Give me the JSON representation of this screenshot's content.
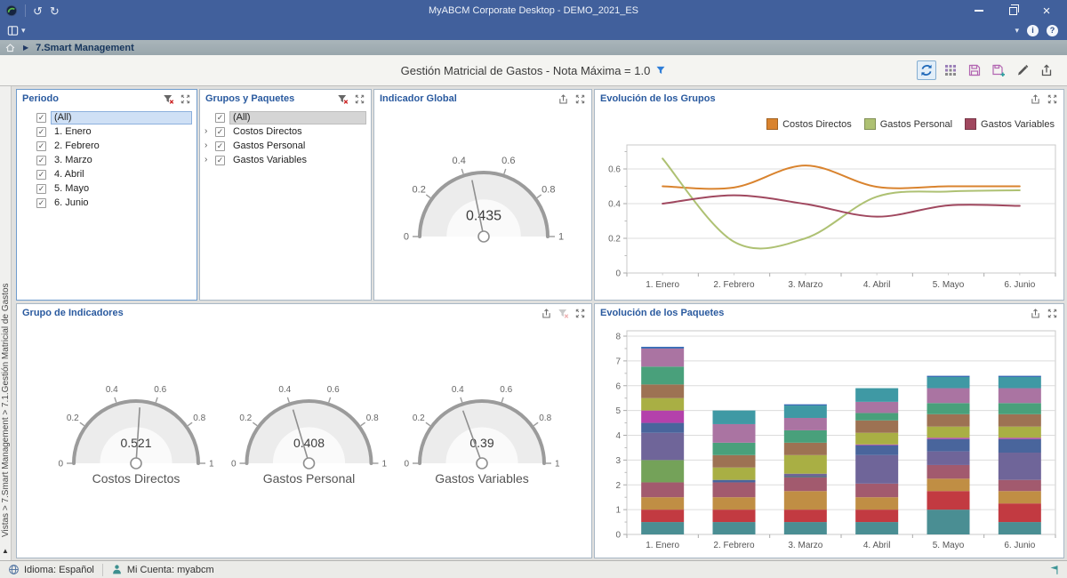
{
  "titlebar": {
    "title": "MyABCM Corporate Desktop - DEMO_2021_ES"
  },
  "icons": {
    "undo": "↺",
    "redo": "↻",
    "chevron_down": "▾",
    "info": "i",
    "help": "?",
    "close": "×",
    "breadcrumb_arrow": "▶",
    "sidebar_collapse": "▲"
  },
  "breadcrumb": {
    "label": "7.Smart Management"
  },
  "view_header": {
    "title": "Gestión Matricial de Gastos - Nota Máxima = 1.0"
  },
  "side_nav": {
    "path": "Vistas > 7.Smart Management > 7.1.Gestión Matricial de Gastos"
  },
  "statusbar": {
    "language": "Idioma: Español",
    "account": "Mi Cuenta: myabcm"
  },
  "filters": {
    "periodo": {
      "title": "Periodo",
      "items": [
        {
          "label": "(All)",
          "checked": true,
          "selected": true
        },
        {
          "label": "1. Enero",
          "checked": true
        },
        {
          "label": "2. Febrero",
          "checked": true
        },
        {
          "label": "3. Marzo",
          "checked": true
        },
        {
          "label": "4. Abril",
          "checked": true
        },
        {
          "label": "5. Mayo",
          "checked": true
        },
        {
          "label": "6. Junio",
          "checked": true
        }
      ]
    },
    "grupos_paquetes": {
      "title": "Grupos y Paquetes",
      "items": [
        {
          "label": "(All)",
          "checked": true,
          "selected": true,
          "expandable": false
        },
        {
          "label": "Costos Directos",
          "checked": true,
          "expandable": true
        },
        {
          "label": "Gastos Personal",
          "checked": true,
          "expandable": true
        },
        {
          "label": "Gastos Variables",
          "checked": true,
          "expandable": true
        }
      ]
    }
  },
  "chart_data": [
    {
      "type": "gauge",
      "panel": "Indicador Global",
      "value": 0.435,
      "min": 0,
      "max": 1,
      "ticks": [
        0.2,
        0.4,
        0.6,
        0.8
      ]
    },
    {
      "type": "line",
      "panel": "Evolución de los Grupos",
      "categories": [
        "1. Enero",
        "2. Febrero",
        "3. Marzo",
        "4. Abril",
        "5. Mayo",
        "6. Junio"
      ],
      "ylim": [
        0,
        0.74
      ],
      "yticks": [
        0,
        0.2,
        0.4,
        0.6
      ],
      "grid": true,
      "legend_position": "top-right",
      "series": [
        {
          "name": "Costos Directos",
          "color": "#d9832e",
          "values": [
            0.5,
            0.493,
            0.62,
            0.497,
            0.5,
            0.5
          ]
        },
        {
          "name": "Gastos Personal",
          "color": "#aec173",
          "values": [
            0.66,
            0.18,
            0.2,
            0.44,
            0.47,
            0.477
          ]
        },
        {
          "name": "Gastos Variables",
          "color": "#a0485f",
          "values": [
            0.4,
            0.448,
            0.398,
            0.325,
            0.39,
            0.387
          ]
        }
      ]
    },
    {
      "type": "gauge",
      "panel": "Grupo de Indicadores",
      "min": 0,
      "max": 1,
      "ticks": [
        0.2,
        0.4,
        0.6,
        0.8
      ],
      "gauges": [
        {
          "label": "Costos Directos",
          "value": 0.521
        },
        {
          "label": "Gastos Personal",
          "value": 0.408
        },
        {
          "label": "Gastos Variables",
          "value": 0.39
        }
      ]
    },
    {
      "type": "bar",
      "stacked": true,
      "panel": "Evolución de los Paquetes",
      "categories": [
        "1. Enero",
        "2. Febrero",
        "3. Marzo",
        "4. Abril",
        "5. Mayo",
        "6. Junio"
      ],
      "ylim": [
        0,
        8
      ],
      "yticks": [
        0,
        1,
        2,
        3,
        4,
        5,
        6,
        7,
        8
      ],
      "grid": true,
      "palette": {
        "teal": "#4a8e93",
        "red": "#c23a41",
        "tan": "#c08e44",
        "mauve": "#a25a6e",
        "green": "#74a259",
        "purple": "#6f6599",
        "darkblue": "#49659c",
        "magenta": "#b441ab",
        "yellowgreen": "#a9af44",
        "brown": "#9d7253",
        "seagreen": "#49a07b",
        "orchid": "#aa74a2",
        "bluecap": "#3a6cb5",
        "cyan": "#3f99a4",
        "darkteal": "#50707a"
      },
      "bars": [
        [
          [
            "teal",
            0.5
          ],
          [
            "red",
            0.5
          ],
          [
            "tan",
            0.5
          ],
          [
            "mauve",
            0.6
          ],
          [
            "green",
            0.9
          ],
          [
            "purple",
            1.1
          ],
          [
            "darkblue",
            0.4
          ],
          [
            "magenta",
            0.5
          ],
          [
            "yellowgreen",
            0.5
          ],
          [
            "brown",
            0.55
          ],
          [
            "seagreen",
            0.72
          ],
          [
            "orchid",
            0.73
          ],
          [
            "bluecap",
            0.07
          ]
        ],
        [
          [
            "teal",
            0.5
          ],
          [
            "red",
            0.5
          ],
          [
            "tan",
            0.5
          ],
          [
            "mauve",
            0.6
          ],
          [
            "darkblue",
            0.1
          ],
          [
            "yellowgreen",
            0.5
          ],
          [
            "brown",
            0.5
          ],
          [
            "seagreen",
            0.5
          ],
          [
            "orchid",
            0.75
          ],
          [
            "cyan",
            0.55
          ]
        ],
        [
          [
            "teal",
            0.5
          ],
          [
            "red",
            0.5
          ],
          [
            "tan",
            0.75
          ],
          [
            "mauve",
            0.55
          ],
          [
            "darkteal",
            0.05
          ],
          [
            "purple",
            0.1
          ],
          [
            "yellowgreen",
            0.75
          ],
          [
            "brown",
            0.5
          ],
          [
            "seagreen",
            0.5
          ],
          [
            "orchid",
            0.5
          ],
          [
            "cyan",
            0.5
          ],
          [
            "bluecap",
            0.05
          ]
        ],
        [
          [
            "teal",
            0.5
          ],
          [
            "red",
            0.5
          ],
          [
            "tan",
            0.5
          ],
          [
            "mauve",
            0.55
          ],
          [
            "purple",
            1.15
          ],
          [
            "darkblue",
            0.4
          ],
          [
            "magenta",
            0.03
          ],
          [
            "yellowgreen",
            0.47
          ],
          [
            "brown",
            0.5
          ],
          [
            "seagreen",
            0.3
          ],
          [
            "orchid",
            0.45
          ],
          [
            "cyan",
            0.55
          ]
        ],
        [
          [
            "teal",
            1.0
          ],
          [
            "red",
            0.75
          ],
          [
            "tan",
            0.5
          ],
          [
            "mauve",
            0.55
          ],
          [
            "purple",
            0.55
          ],
          [
            "darkblue",
            0.5
          ],
          [
            "magenta",
            0.05
          ],
          [
            "yellowgreen",
            0.45
          ],
          [
            "brown",
            0.5
          ],
          [
            "seagreen",
            0.45
          ],
          [
            "orchid",
            0.6
          ],
          [
            "cyan",
            0.45
          ],
          [
            "bluecap",
            0.05
          ]
        ],
        [
          [
            "teal",
            0.5
          ],
          [
            "red",
            0.75
          ],
          [
            "tan",
            0.5
          ],
          [
            "mauve",
            0.45
          ],
          [
            "purple",
            1.1
          ],
          [
            "darkblue",
            0.55
          ],
          [
            "magenta",
            0.05
          ],
          [
            "yellowgreen",
            0.45
          ],
          [
            "brown",
            0.5
          ],
          [
            "seagreen",
            0.45
          ],
          [
            "orchid",
            0.6
          ],
          [
            "cyan",
            0.45
          ],
          [
            "bluecap",
            0.05
          ]
        ]
      ]
    }
  ]
}
